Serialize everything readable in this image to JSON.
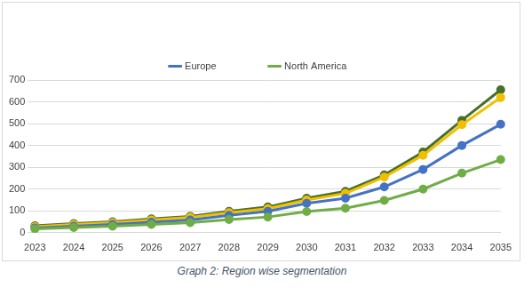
{
  "chart_data": {
    "type": "line",
    "title": "Graph 2: Region wise segmentation",
    "categories": [
      "2023",
      "2024",
      "2025",
      "2026",
      "2027",
      "2028",
      "2029",
      "2030",
      "2031",
      "2032",
      "2033",
      "2034",
      "2035"
    ],
    "series": [
      {
        "color": "#4a6f2b",
        "values": [
          32,
          42,
          50,
          63,
          75,
          98,
          118,
          158,
          190,
          265,
          370,
          515,
          655
        ]
      },
      {
        "color": "#f0c000",
        "values": [
          28,
          38,
          46,
          58,
          70,
          92,
          110,
          150,
          180,
          255,
          355,
          495,
          620
        ]
      },
      {
        "name": "Europe",
        "color": "#4472c4",
        "values": [
          22,
          30,
          38,
          48,
          58,
          80,
          98,
          135,
          158,
          210,
          290,
          400,
          497
        ]
      },
      {
        "name": "North America",
        "color": "#70ad47",
        "values": [
          18,
          24,
          30,
          38,
          46,
          60,
          72,
          97,
          112,
          148,
          200,
          273,
          335
        ]
      }
    ],
    "ylim": [
      0,
      700
    ],
    "yticks": [
      0,
      100,
      200,
      300,
      400,
      500,
      600,
      700
    ],
    "grid": true,
    "legend": "top",
    "marker": "circle"
  }
}
